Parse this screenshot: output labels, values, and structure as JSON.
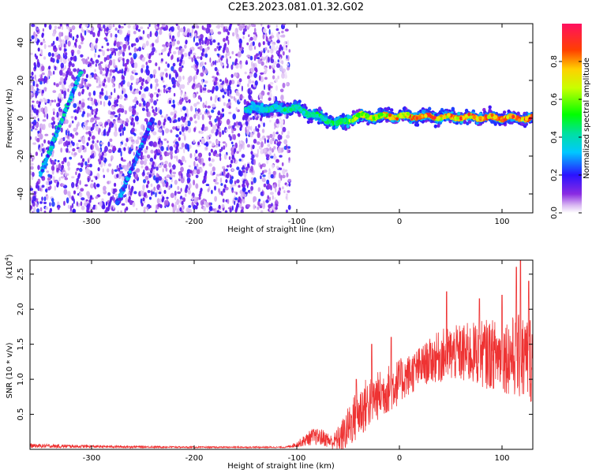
{
  "title": "C2E3.2023.081.01.32.G02",
  "chart_data": [
    {
      "type": "heatmap",
      "xlabel": "Height of straight line (km)",
      "ylabel": "Frequency (Hz)",
      "xlim": [
        -360,
        130
      ],
      "ylim": [
        -50,
        50
      ],
      "xticks": [
        -300,
        -200,
        -100,
        0,
        100
      ],
      "yticks": [
        -40,
        -20,
        0,
        20,
        40
      ],
      "colorbar": {
        "label": "Normalized spectral amplitude",
        "range": [
          0.0,
          1.0
        ],
        "ticks": [
          0.0,
          0.2,
          0.4,
          0.6,
          0.8
        ],
        "colormap": "rainbow (white -> violet -> blue -> cyan -> green -> yellow -> red -> magenta)"
      },
      "features": [
        {
          "name": "",
          "kind": "streak",
          "from": [
            -350,
            -30
          ],
          "to": [
            -310,
            25
          ],
          "amplitude": 0.45
        },
        {
          "name": "",
          "kind": "streak",
          "from": [
            -275,
            -45
          ],
          "to": [
            -240,
            0
          ],
          "amplitude": 0.35
        },
        {
          "name": "",
          "kind": "main band",
          "x_range": [
            -150,
            130
          ],
          "center_hz": [
            [
              -150,
              5
            ],
            [
              -100,
              5
            ],
            [
              -60,
              -3
            ],
            [
              -40,
              1
            ],
            [
              0,
              1
            ],
            [
              130,
              0
            ]
          ],
          "amplitude": [
            [
              -150,
              0.4
            ],
            [
              -60,
              0.5
            ],
            [
              -40,
              0.7
            ],
            [
              20,
              0.85
            ],
            [
              130,
              0.9
            ]
          ]
        }
      ],
      "noise_region_x": [
        -360,
        -115
      ]
    },
    {
      "type": "line",
      "xlabel": "Height of straight line (km)",
      "ylabel": "SNR (10 * v/v)",
      "y_multiplier": "(x10^4)",
      "xlim": [
        -360,
        130
      ],
      "ylim": [
        0,
        2.7
      ],
      "xticks": [
        -300,
        -200,
        -100,
        0,
        100
      ],
      "yticks": [
        0.5,
        1.0,
        1.5,
        2.0,
        2.5
      ],
      "series": [
        {
          "name": "",
          "color": "#ee3333",
          "envelope": {
            "x": [
              -360,
              -300,
              -200,
              -110,
              -100,
              -85,
              -75,
              -65,
              -55,
              -45,
              -35,
              -25,
              -15,
              -5,
              5,
              15,
              25,
              35,
              45,
              55,
              65,
              75,
              85,
              95,
              105,
              115,
              125,
              130
            ],
            "mean": [
              0.05,
              0.04,
              0.03,
              0.03,
              0.07,
              0.18,
              0.17,
              0.1,
              0.2,
              0.42,
              0.6,
              0.72,
              0.82,
              0.92,
              1.02,
              1.12,
              1.22,
              1.3,
              1.35,
              1.37,
              1.36,
              1.37,
              1.36,
              1.35,
              1.34,
              1.32,
              1.3,
              1.3
            ],
            "spread": [
              0.03,
              0.02,
              0.01,
              0.01,
              0.04,
              0.12,
              0.12,
              0.1,
              0.25,
              0.35,
              0.4,
              0.35,
              0.35,
              0.35,
              0.3,
              0.3,
              0.3,
              0.35,
              0.4,
              0.4,
              0.45,
              0.45,
              0.5,
              0.5,
              0.55,
              0.6,
              0.65,
              0.65
            ]
          },
          "peaks": [
            [
              -42,
              1.0
            ],
            [
              -27,
              1.5
            ],
            [
              -8,
              1.6
            ],
            [
              46,
              2.25
            ],
            [
              78,
              2.15
            ],
            [
              100,
              2.2
            ],
            [
              114,
              2.6
            ],
            [
              118,
              2.7
            ],
            [
              126,
              2.4
            ]
          ]
        }
      ]
    }
  ]
}
